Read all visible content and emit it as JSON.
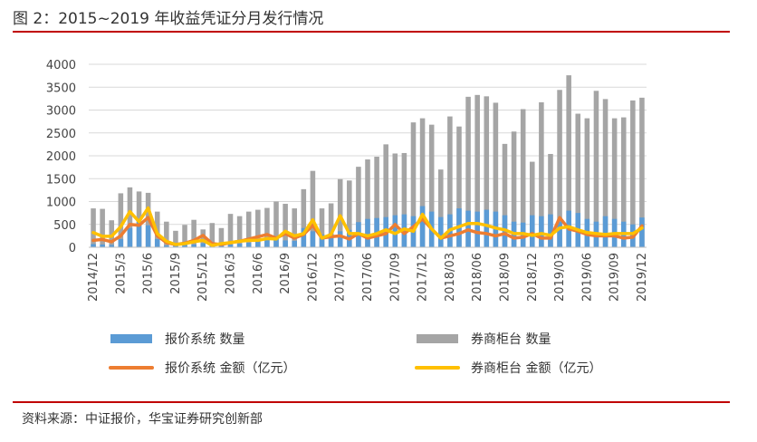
{
  "title": "图 2：2015~2019 年收益凭证分月发行情况",
  "source": "资料来源：中证报价，华宝证券研究创新部",
  "colors": {
    "blue_bar": "#5b9bd5",
    "gray_bar": "#a5a5a5",
    "orange_line": "#ed7d31",
    "yellow_line": "#ffc000",
    "rule": "#c00000"
  },
  "chart_data": {
    "type": "bar",
    "title": "",
    "xlabel": "",
    "ylabel": "",
    "ylim": [
      0,
      4000
    ],
    "yticks": [
      "0",
      "500",
      "1000",
      "1500",
      "2000",
      "2500",
      "3000",
      "3500",
      "4000"
    ],
    "grid": true,
    "legend_position": "bottom",
    "categories": [
      "2014/12",
      "2015/1",
      "2015/2",
      "2015/3",
      "2015/4",
      "2015/5",
      "2015/6",
      "2015/7",
      "2015/8",
      "2015/9",
      "2015/10",
      "2015/11",
      "2015/12",
      "2016/1",
      "2016/2",
      "2016/3",
      "2016/4",
      "2016/5",
      "2016/6",
      "2016/7",
      "2016/8",
      "2016/9",
      "2016/10",
      "2016/11",
      "2016/12",
      "2017/01",
      "2017/02",
      "2017/03",
      "2017/04",
      "2017/05",
      "2017/06",
      "2017/07",
      "2017/08",
      "2017/09",
      "2017/10",
      "2017/11",
      "2017/12",
      "2018/01",
      "2018/02",
      "2018/03",
      "2018/04",
      "2018/05",
      "2018/06",
      "2018/07",
      "2018/08",
      "2018/09",
      "2018/10",
      "2018/11",
      "2018/12",
      "2019/01",
      "2019/02",
      "2019/03",
      "2019/04",
      "2019/05",
      "2019/06",
      "2019/07",
      "2019/08",
      "2019/09",
      "2019/10",
      "2019/11",
      "2019/12"
    ],
    "tick_labels": [
      "2014/12",
      "2015/3",
      "2015/6",
      "2015/9",
      "2015/12",
      "2016/3",
      "2016/6",
      "2016/9",
      "2016/12",
      "2017/03",
      "2017/06",
      "2017/09",
      "2017/12",
      "2018/03",
      "2018/06",
      "2018/09",
      "2018/12",
      "2019/03",
      "2019/06",
      "2019/09",
      "2019/12"
    ],
    "series": [
      {
        "name": "报价系统 数量",
        "kind": "bar",
        "color": "#5b9bd5",
        "values": [
          70,
          60,
          50,
          180,
          420,
          560,
          480,
          180,
          40,
          30,
          50,
          60,
          90,
          30,
          50,
          60,
          80,
          100,
          150,
          160,
          200,
          150,
          140,
          420,
          350,
          280,
          300,
          350,
          380,
          550,
          620,
          640,
          660,
          700,
          720,
          680,
          900,
          780,
          660,
          720,
          850,
          800,
          780,
          820,
          780,
          700,
          560,
          540,
          700,
          680,
          720,
          560,
          800,
          750,
          620,
          560,
          680,
          620,
          560,
          500,
          650
        ]
      },
      {
        "name": "券商柜台 数量",
        "kind": "bar",
        "color": "#a5a5a5",
        "values": [
          850,
          840,
          590,
          1180,
          1310,
          1220,
          1190,
          780,
          560,
          360,
          490,
          600,
          390,
          530,
          420,
          730,
          680,
          780,
          820,
          860,
          1000,
          950,
          850,
          1270,
          1670,
          850,
          960,
          1490,
          1460,
          1760,
          1920,
          1980,
          2250,
          2050,
          2060,
          2730,
          2820,
          2680,
          1700,
          2860,
          2640,
          3290,
          3330,
          3300,
          3160,
          2260,
          2530,
          3020,
          1870,
          3170,
          2040,
          3440,
          3760,
          2920,
          2820,
          3420,
          3240,
          2820,
          2840,
          3210,
          3270
        ]
      },
      {
        "name": "报价系统 金额（亿元）",
        "kind": "line",
        "color": "#ed7d31",
        "values": [
          150,
          170,
          120,
          250,
          500,
          480,
          650,
          250,
          100,
          60,
          90,
          150,
          260,
          80,
          60,
          100,
          130,
          180,
          230,
          280,
          200,
          300,
          200,
          280,
          480,
          200,
          230,
          250,
          180,
          300,
          200,
          250,
          300,
          500,
          300,
          450,
          620,
          400,
          200,
          250,
          300,
          380,
          320,
          300,
          250,
          300,
          200,
          220,
          300,
          200,
          200,
          650,
          400,
          350,
          280,
          250,
          250,
          250,
          200,
          220,
          470
        ]
      },
      {
        "name": "券商柜台 金额（亿元）",
        "kind": "line",
        "color": "#ffc000",
        "values": [
          320,
          240,
          240,
          450,
          780,
          560,
          860,
          300,
          130,
          60,
          80,
          120,
          150,
          40,
          80,
          100,
          130,
          150,
          150,
          190,
          180,
          350,
          250,
          300,
          600,
          200,
          280,
          690,
          300,
          300,
          250,
          300,
          380,
          300,
          400,
          350,
          720,
          400,
          200,
          380,
          450,
          520,
          520,
          480,
          420,
          380,
          300,
          300,
          260,
          300,
          260,
          420,
          450,
          380,
          320,
          300,
          280,
          300,
          300,
          300,
          420
        ]
      }
    ]
  }
}
